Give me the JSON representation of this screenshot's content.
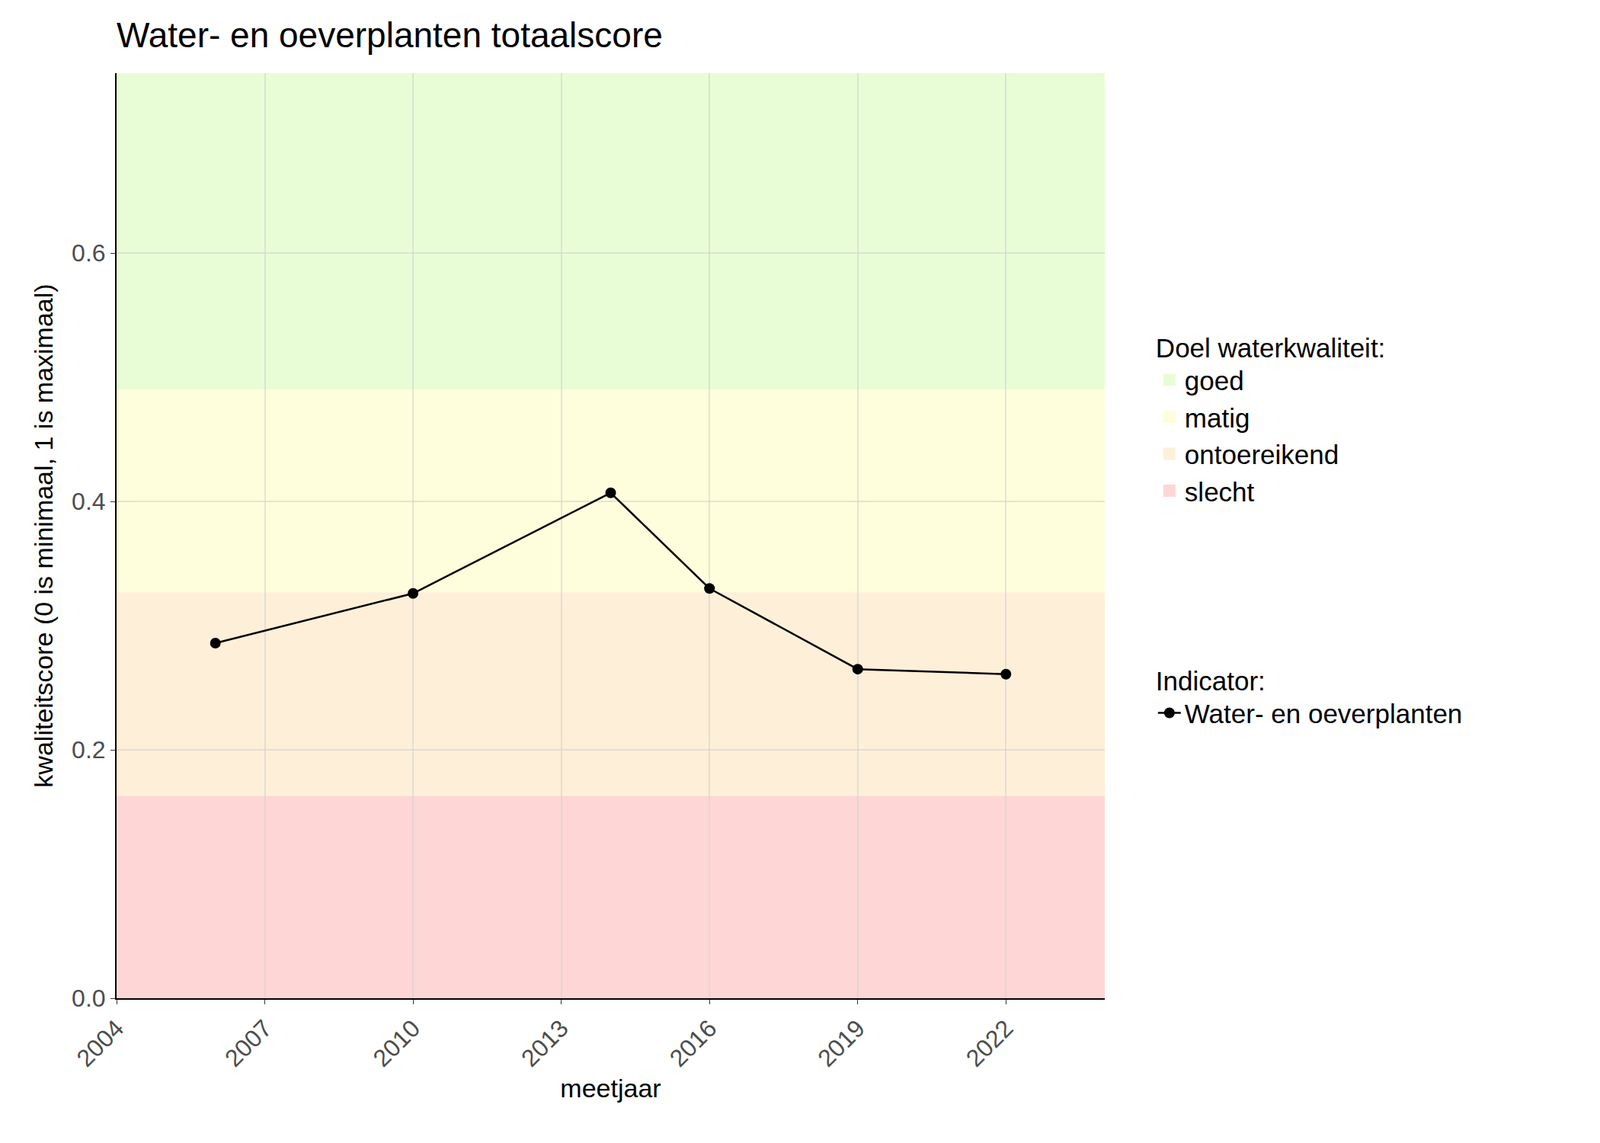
{
  "chart_data": {
    "type": "line",
    "title": "Water- en oeverplanten totaalscore",
    "x_label": "meetjaar",
    "y_label": "kwaliteitscore (0 is minimaal, 1 is maximaal)",
    "x": [
      2006,
      2010,
      2014,
      2016,
      2019,
      2022
    ],
    "series": [
      {
        "name": "Water- en oeverplanten",
        "color": "#000000",
        "marker": "circle",
        "line_style": "solid",
        "values": [
          0.286,
          0.326,
          0.407,
          0.33,
          0.265,
          0.261
        ]
      }
    ],
    "bands": [
      {
        "name": "goed",
        "from": 0.49,
        "to": 1,
        "color": "#e8fdd6"
      },
      {
        "name": "matig",
        "from": 0.327,
        "to": 0.49,
        "color": "#fefedc"
      },
      {
        "name": "ontoereikend",
        "from": 0.163,
        "to": 0.327,
        "color": "#fef0d8"
      },
      {
        "name": "slecht",
        "from": 0,
        "to": 0.163,
        "color": "#fed6d6"
      }
    ],
    "band_legend_title": "Doel waterkwaliteit:",
    "series_legend_title": "Indicator:",
    "xlim": [
      2004,
      2024
    ],
    "xticks": [
      2004,
      2007,
      2010,
      2013,
      2016,
      2019,
      2022
    ],
    "ylim": [
      0,
      0.745
    ],
    "yticks": [
      {
        "value": 0,
        "label": "0.0"
      },
      0.2,
      0.4,
      0.6
    ],
    "grid": true
  }
}
